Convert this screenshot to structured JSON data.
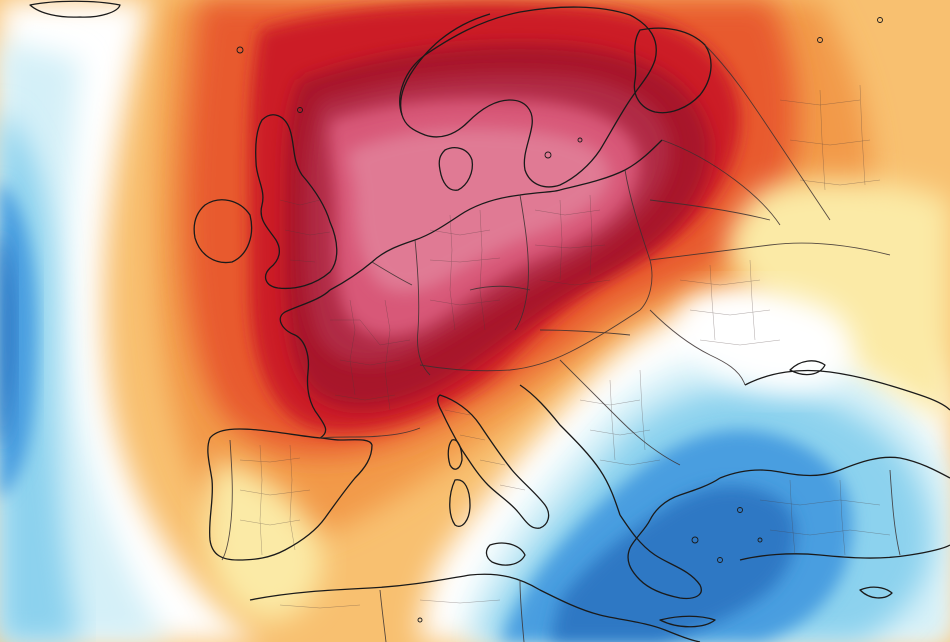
{
  "map": {
    "type": "temperature-anomaly-heatmap",
    "region": "Europe",
    "labels": [],
    "colors": {
      "deep_blue": "#2d78c4",
      "blue": "#4a9ee0",
      "light_blue": "#8cd2ee",
      "pale_cyan": "#d4f0f8",
      "white": "#ffffff",
      "pale_yellow": "#fbeaa6",
      "light_orange": "#f8c070",
      "orange": "#f29a4a",
      "red_orange": "#e85a2e",
      "red": "#cc1e28",
      "dark_red": "#a8122c",
      "maroon": "#b02c44",
      "rose": "#d85878",
      "pink": "#e07a94",
      "coastline": "#1a1a1a",
      "border": "#3a3030"
    },
    "features": [
      "anomaly-field",
      "coastlines",
      "country-borders",
      "regional-borders"
    ]
  }
}
